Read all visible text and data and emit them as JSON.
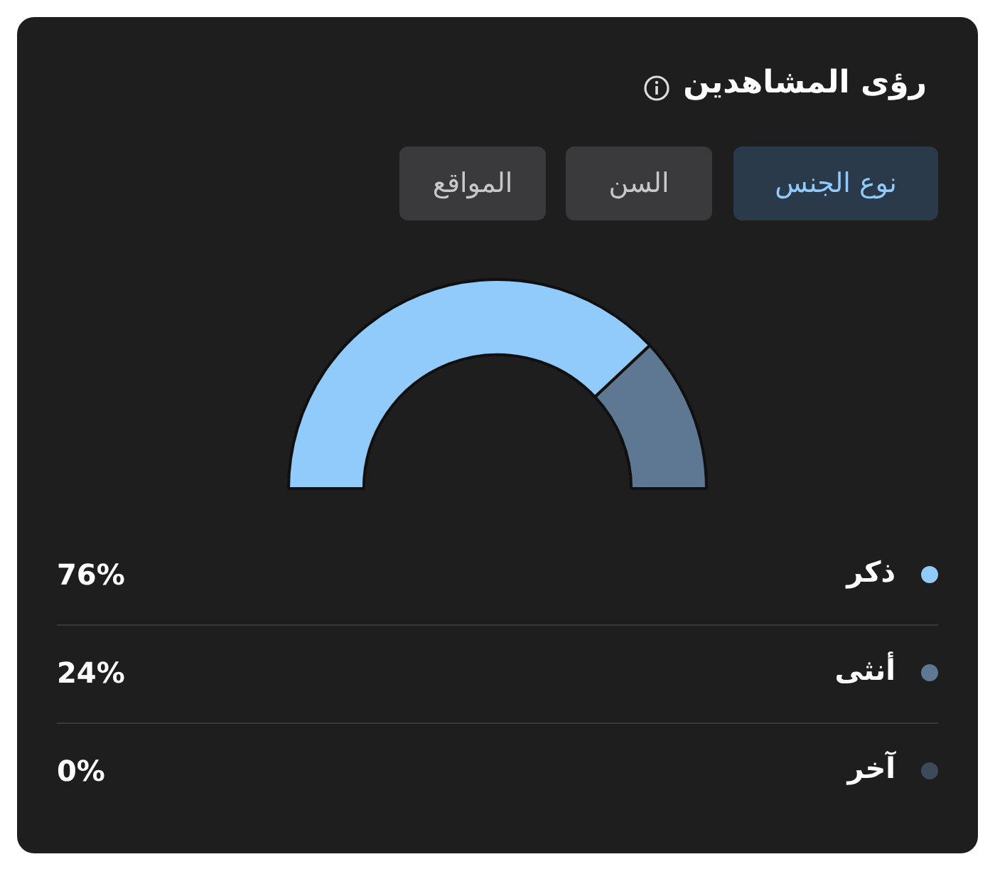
{
  "chart_data": {
    "type": "donut",
    "title": "رؤى المشاهدين",
    "annotations": [
      "نوع الجنس",
      "السن",
      "المواقع"
    ],
    "categories": [
      "ذكر",
      "أنثى",
      "آخر"
    ],
    "values": [
      76,
      24,
      0
    ],
    "colors": [
      "#90cbfb",
      "#5e7893",
      "#3c4a5a"
    ],
    "value_labels": [
      "76%",
      "24%",
      "0%"
    ],
    "legend": "bottom"
  }
}
